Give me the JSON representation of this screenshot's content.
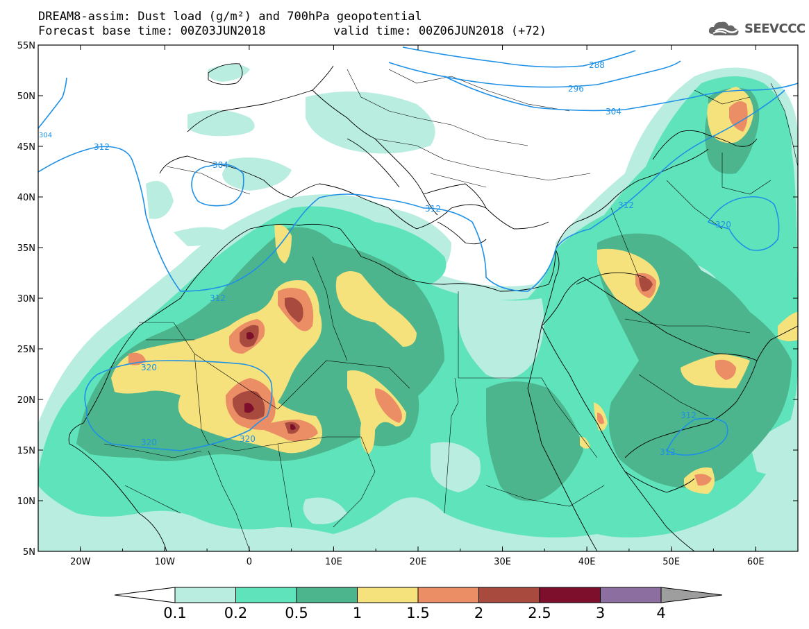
{
  "title_line1": "DREAM8-assim: Dust load (g/m²) and 700hPa geopotential",
  "title_line2": "Forecast base time: 00Z03JUN2018",
  "valid_time": "valid time: 00Z06JUN2018 (+72)",
  "logo_text": "SEEVCCC",
  "lat_labels": [
    "55N",
    "50N",
    "45N",
    "40N",
    "35N",
    "30N",
    "25N",
    "20N",
    "15N",
    "10N",
    "5N"
  ],
  "lon_labels": [
    "20W",
    "10W",
    "0",
    "10E",
    "20E",
    "30E",
    "40E",
    "50E",
    "60E"
  ],
  "contour_labels": {
    "c288": "288",
    "c296": "296",
    "c304a": "304",
    "c304b": "304",
    "c304c": "304",
    "c312a": "312",
    "c312b": "312",
    "c312c": "312",
    "c312d": "312",
    "c312e": "312",
    "c312f": "312",
    "c320a": "320",
    "c320b": "320",
    "c320c": "320"
  },
  "colorbar": {
    "labels": [
      "0.1",
      "0.2",
      "0.5",
      "1",
      "1.5",
      "2",
      "2.5",
      "3",
      "4"
    ],
    "colors": [
      "#b8ede0",
      "#5fe3bb",
      "#4cb58d",
      "#f5e27d",
      "#eb8e66",
      "#a84a3e",
      "#7d0f2c",
      "#8c6fa0",
      "#9e9e9e"
    ]
  },
  "chart_data": {
    "type": "map",
    "lat_range": [
      "5N",
      "55N"
    ],
    "lon_range": [
      "25W",
      "65E"
    ],
    "variable": "Dust load (g/m²)",
    "overlay": "700hPa geopotential",
    "levels": [
      0.1,
      0.2,
      0.5,
      1,
      1.5,
      2,
      2.5,
      3,
      4
    ],
    "contour_values": [
      288,
      296,
      304,
      312,
      320
    ]
  }
}
